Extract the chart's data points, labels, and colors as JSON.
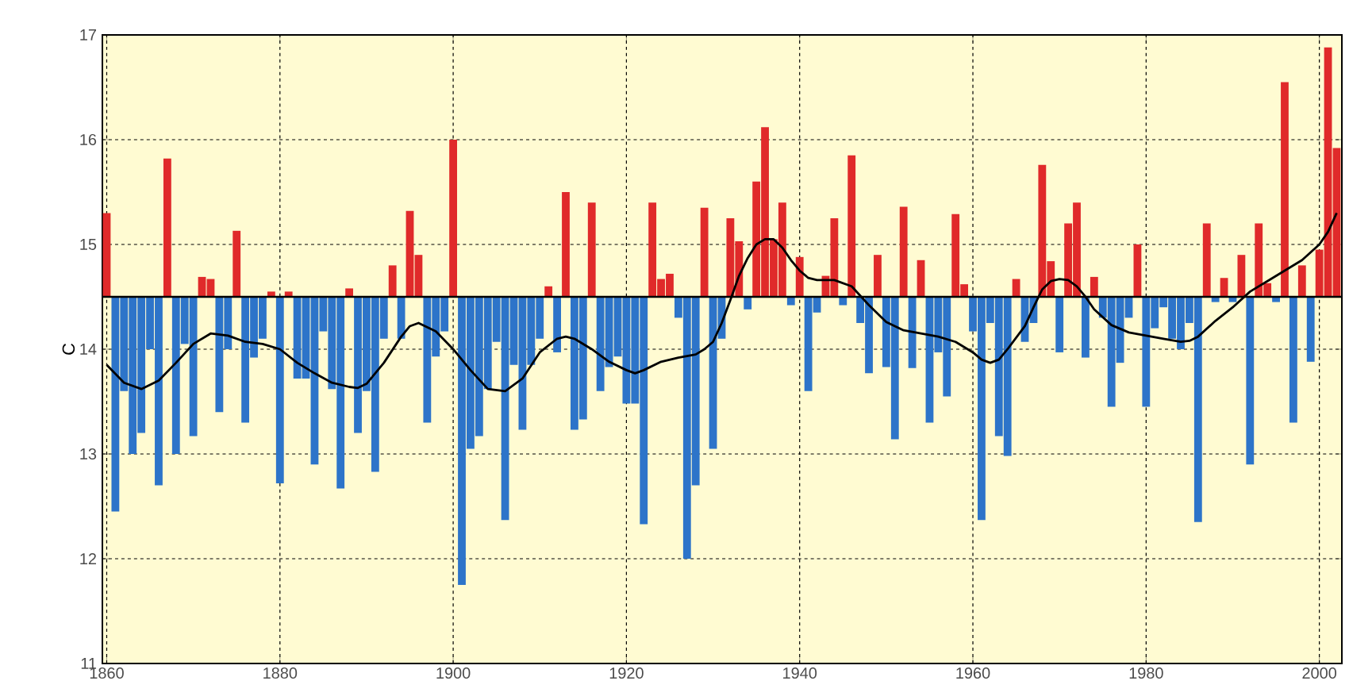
{
  "chart_data": {
    "type": "bar",
    "ylabel": "C",
    "xlim": [
      1859.5,
      2002.6
    ],
    "ylim": [
      11,
      17
    ],
    "xticks": [
      1860,
      1880,
      1900,
      1920,
      1940,
      1960,
      1980,
      2000
    ],
    "yticks": [
      11,
      12,
      13,
      14,
      15,
      16,
      17
    ],
    "grid": true,
    "ref_lines": [
      {
        "axis": "y",
        "value": 14.5,
        "color": "#000000"
      }
    ],
    "series": [
      {
        "x": [
          1860,
          1861,
          1862,
          1863,
          1864,
          1865,
          1866,
          1867,
          1868,
          1869,
          1870,
          1871,
          1872,
          1873,
          1874,
          1875,
          1876,
          1877,
          1878,
          1879,
          1880,
          1881,
          1882,
          1883,
          1884,
          1885,
          1886,
          1887,
          1888,
          1889,
          1890,
          1891,
          1892,
          1893,
          1894,
          1895,
          1896,
          1897,
          1898,
          1899,
          1900,
          1901,
          1902,
          1903,
          1904,
          1905,
          1906,
          1907,
          1908,
          1909,
          1910,
          1911,
          1912,
          1913,
          1914,
          1915,
          1916,
          1917,
          1918,
          1919,
          1920,
          1921,
          1922,
          1923,
          1924,
          1925,
          1926,
          1927,
          1928,
          1929,
          1930,
          1931,
          1932,
          1933,
          1934,
          1935,
          1936,
          1937,
          1938,
          1939,
          1940,
          1941,
          1942,
          1943,
          1944,
          1945,
          1946,
          1947,
          1948,
          1949,
          1950,
          1951,
          1952,
          1953,
          1954,
          1955,
          1956,
          1957,
          1958,
          1959,
          1960,
          1961,
          1962,
          1963,
          1964,
          1965,
          1966,
          1967,
          1968,
          1969,
          1970,
          1971,
          1972,
          1973,
          1974,
          1975,
          1976,
          1977,
          1978,
          1979,
          1980,
          1981,
          1982,
          1983,
          1984,
          1985,
          1986,
          1987,
          1988,
          1989,
          1990,
          1991,
          1992,
          1993,
          1994,
          1995,
          1996,
          1997,
          1998,
          1999,
          2000,
          2001,
          2002
        ],
        "base": [
          14.5,
          14.5,
          14.5,
          14.5,
          14.5,
          14.5,
          14.5,
          14.5,
          14.5,
          14.5,
          14.5,
          14.5,
          14.5,
          14.5,
          14.5,
          14.5,
          14.5,
          14.5,
          14.5,
          14.5,
          14.5,
          14.5,
          14.5,
          14.5,
          14.5,
          14.5,
          14.5,
          14.5,
          14.5,
          14.5,
          14.5,
          14.5,
          14.5,
          14.5,
          14.5,
          14.5,
          14.5,
          14.5,
          14.5,
          14.5,
          14.5,
          14.5,
          14.5,
          14.5,
          14.5,
          14.5,
          14.5,
          14.5,
          14.5,
          14.5,
          14.5,
          14.5,
          14.5,
          14.5,
          14.5,
          14.5,
          14.5,
          14.5,
          14.5,
          14.5,
          14.5,
          14.5,
          14.5,
          14.5,
          14.5,
          14.5,
          14.5,
          14.5,
          14.5,
          14.5,
          14.5,
          14.5,
          14.5,
          14.5,
          14.5,
          14.5,
          14.5,
          14.5,
          14.5,
          14.5,
          14.5,
          14.5,
          14.5,
          14.5,
          14.5,
          14.5,
          14.5,
          14.5,
          14.5,
          14.5,
          14.5,
          14.5,
          14.5,
          14.5,
          14.5,
          14.5,
          14.5,
          14.5,
          14.5,
          14.5,
          14.5,
          14.5,
          14.5,
          14.5,
          14.5,
          14.5,
          14.5,
          14.5,
          14.5,
          14.5,
          14.5,
          14.5,
          14.5,
          14.5,
          14.5,
          14.5,
          14.5,
          14.5,
          14.5,
          14.5,
          14.5,
          14.5,
          14.5,
          14.5,
          14.5,
          14.5,
          14.5,
          14.5,
          14.5,
          14.5,
          14.5,
          14.5,
          14.5,
          14.5,
          14.5,
          14.5,
          14.5,
          14.5,
          14.5,
          14.5,
          14.5,
          14.5,
          14.5
        ],
        "values": [
          0.8,
          -2.05,
          -0.9,
          -1.5,
          -1.3,
          -0.5,
          -1.8,
          1.32,
          -1.5,
          -0.45,
          -1.33,
          0.19,
          0.17,
          -1.1,
          -0.5,
          0.63,
          -1.2,
          -0.58,
          -0.4,
          0.05,
          -1.78,
          0.05,
          -0.78,
          -0.78,
          -1.6,
          -0.33,
          -0.88,
          -1.83,
          0.08,
          -1.3,
          -0.9,
          -1.67,
          -0.4,
          0.3,
          -0.4,
          0.82,
          0.4,
          -1.2,
          -0.57,
          -0.33,
          1.5,
          -2.75,
          -1.45,
          -1.33,
          -0.88,
          -0.43,
          -2.13,
          -0.65,
          -1.27,
          -0.65,
          -0.4,
          0.1,
          -0.53,
          1.0,
          -1.27,
          -1.17,
          0.9,
          -0.9,
          -0.67,
          -0.57,
          -1.02,
          -1.02,
          -2.17,
          0.9,
          0.17,
          0.22,
          -0.2,
          -2.5,
          -1.8,
          0.85,
          -1.45,
          -0.4,
          0.75,
          0.53,
          -0.12,
          1.1,
          1.62,
          0.55,
          0.9,
          -0.08,
          0.38,
          -0.9,
          -0.15,
          0.2,
          0.75,
          -0.08,
          1.35,
          -0.25,
          -0.73,
          0.4,
          -0.67,
          -1.36,
          0.86,
          -0.68,
          0.35,
          -1.2,
          -0.53,
          -0.95,
          0.79,
          0.12,
          -0.33,
          -2.13,
          -0.25,
          -1.33,
          -1.52,
          0.17,
          -0.43,
          -0.25,
          1.26,
          0.34,
          -0.53,
          0.7,
          0.9,
          -0.58,
          0.19,
          -0.2,
          -1.05,
          -0.63,
          -0.2,
          0.5,
          -1.05,
          -0.3,
          -0.1,
          -0.4,
          -0.5,
          -0.25,
          -2.15,
          0.7,
          -0.05,
          0.18,
          -0.05,
          0.4,
          -1.6,
          0.7,
          0.13,
          -0.05,
          2.05,
          -1.2,
          0.3,
          -0.62,
          0.45,
          2.38,
          1.42
        ],
        "colors": [
          "#e02a2a",
          "#2d74c9",
          "#2d74c9",
          "#2d74c9",
          "#2d74c9",
          "#2d74c9",
          "#2d74c9",
          "#e02a2a",
          "#2d74c9",
          "#2d74c9",
          "#2d74c9",
          "#e02a2a",
          "#e02a2a",
          "#2d74c9",
          "#2d74c9",
          "#e02a2a",
          "#2d74c9",
          "#2d74c9",
          "#2d74c9",
          "#e02a2a",
          "#2d74c9",
          "#e02a2a",
          "#2d74c9",
          "#2d74c9",
          "#2d74c9",
          "#2d74c9",
          "#2d74c9",
          "#2d74c9",
          "#e02a2a",
          "#2d74c9",
          "#2d74c9",
          "#2d74c9",
          "#2d74c9",
          "#e02a2a",
          "#2d74c9",
          "#e02a2a",
          "#e02a2a",
          "#2d74c9",
          "#2d74c9",
          "#2d74c9",
          "#e02a2a",
          "#2d74c9",
          "#2d74c9",
          "#2d74c9",
          "#2d74c9",
          "#2d74c9",
          "#2d74c9",
          "#2d74c9",
          "#2d74c9",
          "#2d74c9",
          "#2d74c9",
          "#e02a2a",
          "#2d74c9",
          "#e02a2a",
          "#2d74c9",
          "#2d74c9",
          "#e02a2a",
          "#2d74c9",
          "#2d74c9",
          "#2d74c9",
          "#2d74c9",
          "#2d74c9",
          "#2d74c9",
          "#e02a2a",
          "#e02a2a",
          "#e02a2a",
          "#2d74c9",
          "#2d74c9",
          "#2d74c9",
          "#e02a2a",
          "#2d74c9",
          "#2d74c9",
          "#e02a2a",
          "#e02a2a",
          "#2d74c9",
          "#e02a2a",
          "#e02a2a",
          "#e02a2a",
          "#e02a2a",
          "#2d74c9",
          "#e02a2a",
          "#2d74c9",
          "#2d74c9",
          "#e02a2a",
          "#e02a2a",
          "#2d74c9",
          "#e02a2a",
          "#2d74c9",
          "#2d74c9",
          "#e02a2a",
          "#2d74c9",
          "#2d74c9",
          "#e02a2a",
          "#2d74c9",
          "#e02a2a",
          "#2d74c9",
          "#2d74c9",
          "#2d74c9",
          "#e02a2a",
          "#e02a2a",
          "#2d74c9",
          "#2d74c9",
          "#2d74c9",
          "#2d74c9",
          "#2d74c9",
          "#e02a2a",
          "#2d74c9",
          "#2d74c9",
          "#e02a2a",
          "#e02a2a",
          "#2d74c9",
          "#e02a2a",
          "#e02a2a",
          "#2d74c9",
          "#e02a2a",
          "#2d74c9",
          "#2d74c9",
          "#2d74c9",
          "#2d74c9",
          "#e02a2a",
          "#2d74c9",
          "#2d74c9",
          "#2d74c9",
          "#2d74c9",
          "#2d74c9",
          "#2d74c9",
          "#2d74c9",
          "#e02a2a",
          "#2d74c9",
          "#e02a2a",
          "#2d74c9",
          "#e02a2a",
          "#2d74c9",
          "#e02a2a",
          "#e02a2a",
          "#2d74c9",
          "#e02a2a",
          "#2d74c9",
          "#e02a2a",
          "#2d74c9",
          "#e02a2a",
          "#e02a2a",
          "#e02a2a"
        ]
      },
      {
        "type": "line",
        "color": "#000000",
        "x": [
          1860,
          1862,
          1864,
          1866,
          1868,
          1870,
          1872,
          1874,
          1876,
          1878,
          1880,
          1882,
          1884,
          1886,
          1888,
          1889,
          1890,
          1892,
          1894,
          1895,
          1896,
          1898,
          1900,
          1902,
          1904,
          1906,
          1908,
          1910,
          1912,
          1913,
          1914,
          1916,
          1918,
          1920,
          1921,
          1922,
          1924,
          1926,
          1928,
          1929,
          1930,
          1931,
          1932,
          1933,
          1934,
          1935,
          1936,
          1937,
          1938,
          1939,
          1940,
          1941,
          1942,
          1944,
          1946,
          1948,
          1950,
          1952,
          1954,
          1956,
          1958,
          1960,
          1961,
          1962,
          1963,
          1964,
          1966,
          1967,
          1968,
          1969,
          1970,
          1971,
          1972,
          1973,
          1974,
          1976,
          1978,
          1980,
          1982,
          1984,
          1985,
          1986,
          1988,
          1990,
          1992,
          1994,
          1996,
          1998,
          2000,
          2001,
          2002
        ],
        "values": [
          13.85,
          13.68,
          13.62,
          13.7,
          13.87,
          14.05,
          14.15,
          14.13,
          14.07,
          14.05,
          14.0,
          13.87,
          13.77,
          13.68,
          13.64,
          13.63,
          13.67,
          13.87,
          14.12,
          14.22,
          14.25,
          14.17,
          14.0,
          13.8,
          13.62,
          13.6,
          13.72,
          13.97,
          14.1,
          14.12,
          14.1,
          14.0,
          13.88,
          13.8,
          13.77,
          13.8,
          13.88,
          13.92,
          13.95,
          14.0,
          14.07,
          14.25,
          14.47,
          14.7,
          14.87,
          15.0,
          15.05,
          15.05,
          14.97,
          14.85,
          14.75,
          14.68,
          14.66,
          14.66,
          14.6,
          14.42,
          14.26,
          14.18,
          14.15,
          14.12,
          14.07,
          13.97,
          13.9,
          13.87,
          13.9,
          14.0,
          14.22,
          14.4,
          14.57,
          14.65,
          14.67,
          14.66,
          14.6,
          14.5,
          14.38,
          14.23,
          14.16,
          14.13,
          14.1,
          14.07,
          14.08,
          14.12,
          14.27,
          14.4,
          14.55,
          14.65,
          14.75,
          14.85,
          15.0,
          15.12,
          15.3
        ]
      }
    ]
  }
}
